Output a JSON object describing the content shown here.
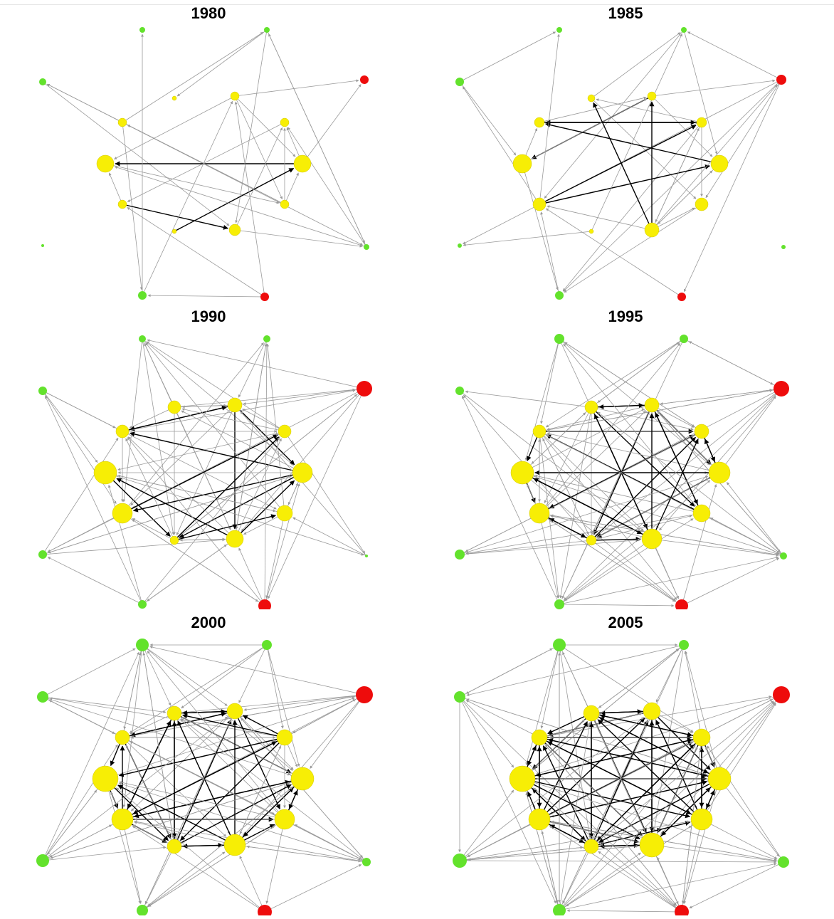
{
  "colors": {
    "core": "#f7ee05",
    "semi": "#63e22c",
    "peripheral": "#ee0c0c",
    "edge_strong": "#000000",
    "edge_weak": "#9a9a9a"
  },
  "panels": [
    {
      "title": "1980"
    },
    {
      "title": "1985"
    },
    {
      "title": "1990"
    },
    {
      "title": "1995"
    },
    {
      "title": "2000"
    },
    {
      "title": "2005"
    }
  ]
}
